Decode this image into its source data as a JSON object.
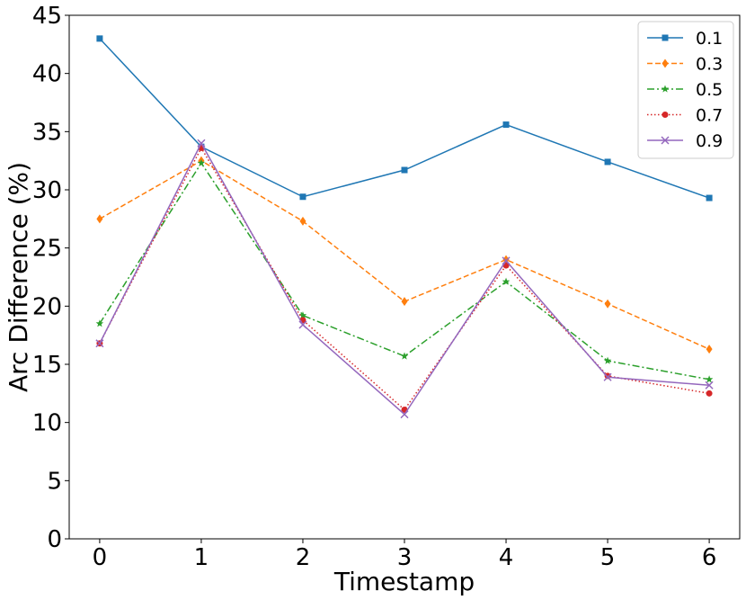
{
  "chart_data": {
    "type": "line",
    "x": [
      0,
      1,
      2,
      3,
      4,
      5,
      6
    ],
    "xlabel": "Timestamp",
    "ylabel": "Arc Difference (%)",
    "xlim": [
      -0.3,
      6.3
    ],
    "ylim": [
      0,
      45
    ],
    "xticks": [
      "0",
      "1",
      "2",
      "3",
      "4",
      "5",
      "6"
    ],
    "yticks": [
      "0",
      "5",
      "10",
      "15",
      "20",
      "25",
      "30",
      "35",
      "40",
      "45"
    ],
    "grid": false,
    "legend_position": "top-right",
    "series": [
      {
        "name": "0.1",
        "values": [
          43.0,
          33.7,
          29.4,
          31.7,
          35.6,
          32.4,
          29.3
        ],
        "color": "#1f77b4",
        "dash": "",
        "marker": "square"
      },
      {
        "name": "0.3",
        "values": [
          27.5,
          32.5,
          27.3,
          20.4,
          24.0,
          20.2,
          16.3
        ],
        "color": "#ff7f0e",
        "dash": "6,3",
        "marker": "diamond"
      },
      {
        "name": "0.5",
        "values": [
          18.5,
          32.3,
          19.2,
          15.7,
          22.1,
          15.3,
          13.7
        ],
        "color": "#2ca02c",
        "dash": "8,3,2,3",
        "marker": "star"
      },
      {
        "name": "0.7",
        "values": [
          16.8,
          33.6,
          18.8,
          11.1,
          23.5,
          14.0,
          12.5
        ],
        "color": "#d62728",
        "dash": "1.5,2.5",
        "marker": "circle"
      },
      {
        "name": "0.9",
        "values": [
          16.8,
          34.0,
          18.4,
          10.7,
          23.9,
          13.9,
          13.2
        ],
        "color": "#9467bd",
        "dash": "",
        "marker": "x"
      }
    ]
  }
}
